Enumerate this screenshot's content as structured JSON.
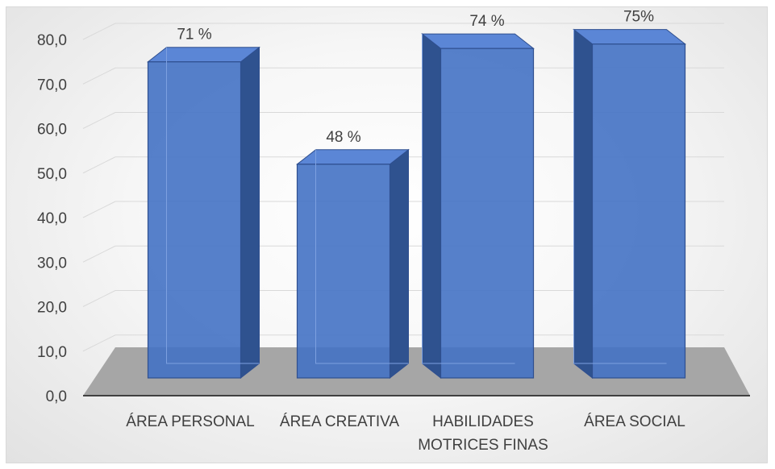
{
  "chart_data": {
    "type": "bar",
    "style": "3d-column",
    "categories": [
      [
        "ÁREA PERSONAL"
      ],
      [
        "ÁREA CREATIVA"
      ],
      [
        "HABILIDADES",
        "MOTRICES FINAS"
      ],
      [
        "ÁREA SOCIAL"
      ]
    ],
    "values": [
      71,
      48,
      74,
      75
    ],
    "data_labels": [
      "71 %",
      "48 %",
      "74 %",
      "75%"
    ],
    "title": "",
    "xlabel": "",
    "ylabel": "",
    "ylim": [
      0,
      80
    ],
    "yticks": [
      "0,0",
      "10,0",
      "20,0",
      "30,0",
      "40,0",
      "50,0",
      "60,0",
      "70,0",
      "80,0"
    ],
    "grid": true,
    "legend": "none",
    "colors": {
      "bar_front": "#4472c4",
      "bar_side": "#2f528f",
      "bar_top": "#5b86d6",
      "bar_edge": "#2f4f8f",
      "floor": "#a6a6a6",
      "gridline": "#d9d9d9",
      "axis": "#404040"
    }
  }
}
